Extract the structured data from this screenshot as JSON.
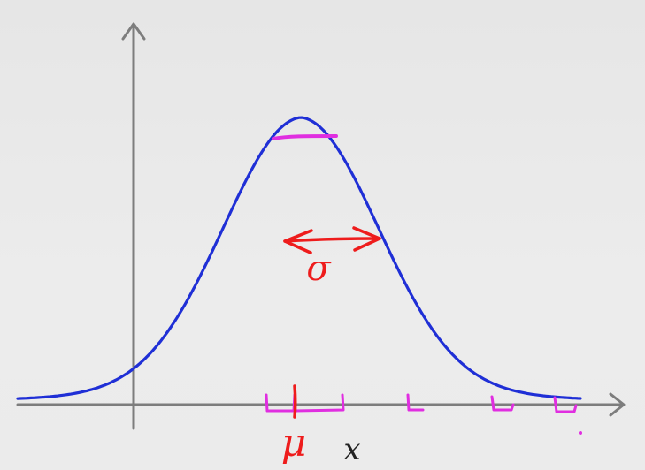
{
  "labels": {
    "x_axis": "x",
    "mu": "μ",
    "sigma": "σ"
  },
  "colors": {
    "background": "#e9e9e9",
    "axis": "#7d7d7d",
    "curve": "#1f2fd6",
    "annotation_red": "#ee1c1c",
    "annotation_magenta": "#e02ee0",
    "label_text": "#222222"
  },
  "icons": {
    "x_axis_head": "arrow-right-icon",
    "y_axis_head": "arrow-up-icon",
    "sigma_arrow": "double-arrow-icon"
  }
}
